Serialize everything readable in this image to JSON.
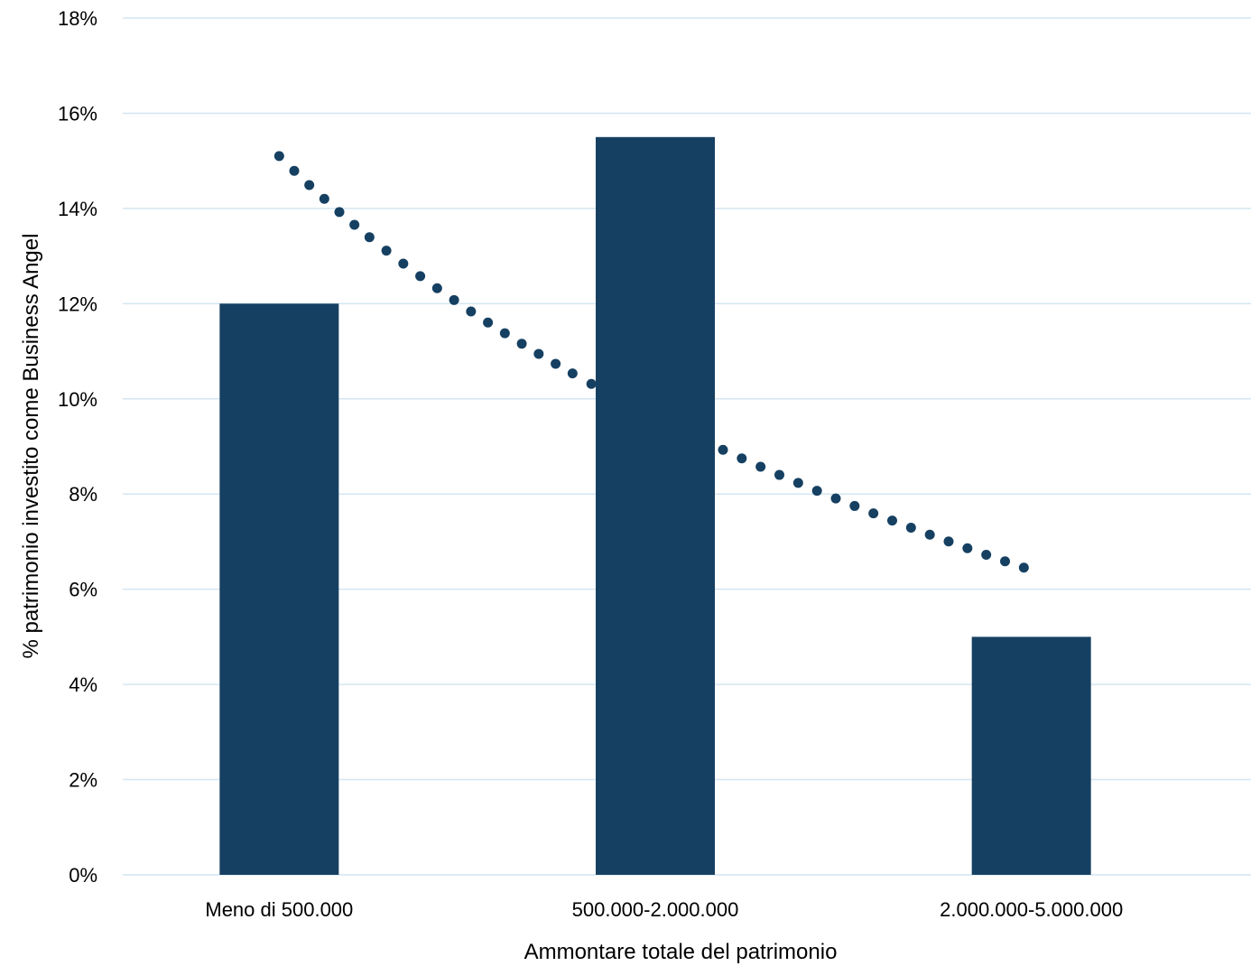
{
  "chart_data": {
    "type": "bar",
    "title": "",
    "xlabel": "Ammontare totale del patrimonio",
    "ylabel": "% patrimonio investito come Business Angel",
    "categories": [
      "Meno di 500.000",
      "500.000-2.000.000",
      "2.000.000-5.000.000"
    ],
    "values": [
      12,
      15.5,
      5
    ],
    "ylim": [
      0,
      18
    ],
    "yticks": [
      0,
      2,
      4,
      6,
      8,
      10,
      12,
      14,
      16,
      18
    ],
    "ytick_labels": [
      "0%",
      "2%",
      "4%",
      "6%",
      "8%",
      "10%",
      "12%",
      "14%",
      "16%",
      "18%"
    ],
    "grid": true,
    "legend": "none",
    "trendline": {
      "type": "logarithmic",
      "style": "dotted",
      "values": [
        15.1,
        6.4
      ]
    },
    "colors": {
      "bar": "#164062",
      "trendline": "#164062",
      "grid": "#d4e6f1",
      "text": "#000000"
    }
  }
}
